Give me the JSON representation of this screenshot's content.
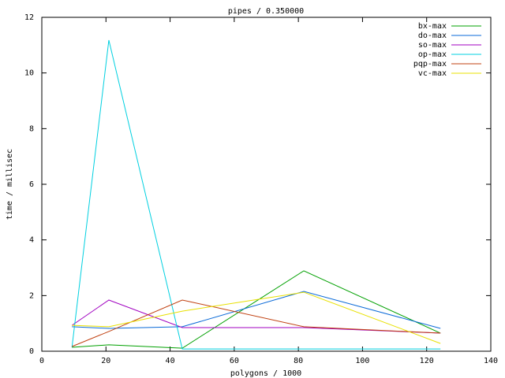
{
  "chart_data": {
    "type": "line",
    "title": "pipes / 0.350000",
    "x_label": "polygons / 1000",
    "y_label": "time / millisec",
    "x": [
      9.4,
      20.9,
      43.8,
      81.7,
      124.3
    ],
    "series": [
      {
        "name": "bx-max",
        "color": "#00a000",
        "values": [
          0.14,
          0.23,
          0.11,
          2.89,
          0.65
        ]
      },
      {
        "name": "do-max",
        "color": "#0a6ad8",
        "values": [
          0.88,
          0.82,
          0.88,
          2.15,
          0.82
        ]
      },
      {
        "name": "so-max",
        "color": "#a000c0",
        "values": [
          0.93,
          1.84,
          0.85,
          0.85,
          0.65
        ]
      },
      {
        "name": "op-max",
        "color": "#00d0e0",
        "values": [
          0.14,
          11.18,
          0.08,
          0.08,
          0.08
        ]
      },
      {
        "name": "pqp-max",
        "color": "#c04010",
        "values": [
          0.17,
          0.71,
          1.84,
          0.88,
          0.65
        ]
      },
      {
        "name": "vc-max",
        "color": "#e8e000",
        "values": [
          0.93,
          0.88,
          1.44,
          2.12,
          0.28
        ]
      }
    ],
    "xlim": [
      0,
      140
    ],
    "xticks": [
      0,
      20,
      40,
      60,
      80,
      100,
      120,
      140
    ],
    "ylim": [
      0,
      12
    ],
    "yticks": [
      0,
      2,
      4,
      6,
      8,
      10,
      12
    ],
    "legend": "top-right"
  }
}
